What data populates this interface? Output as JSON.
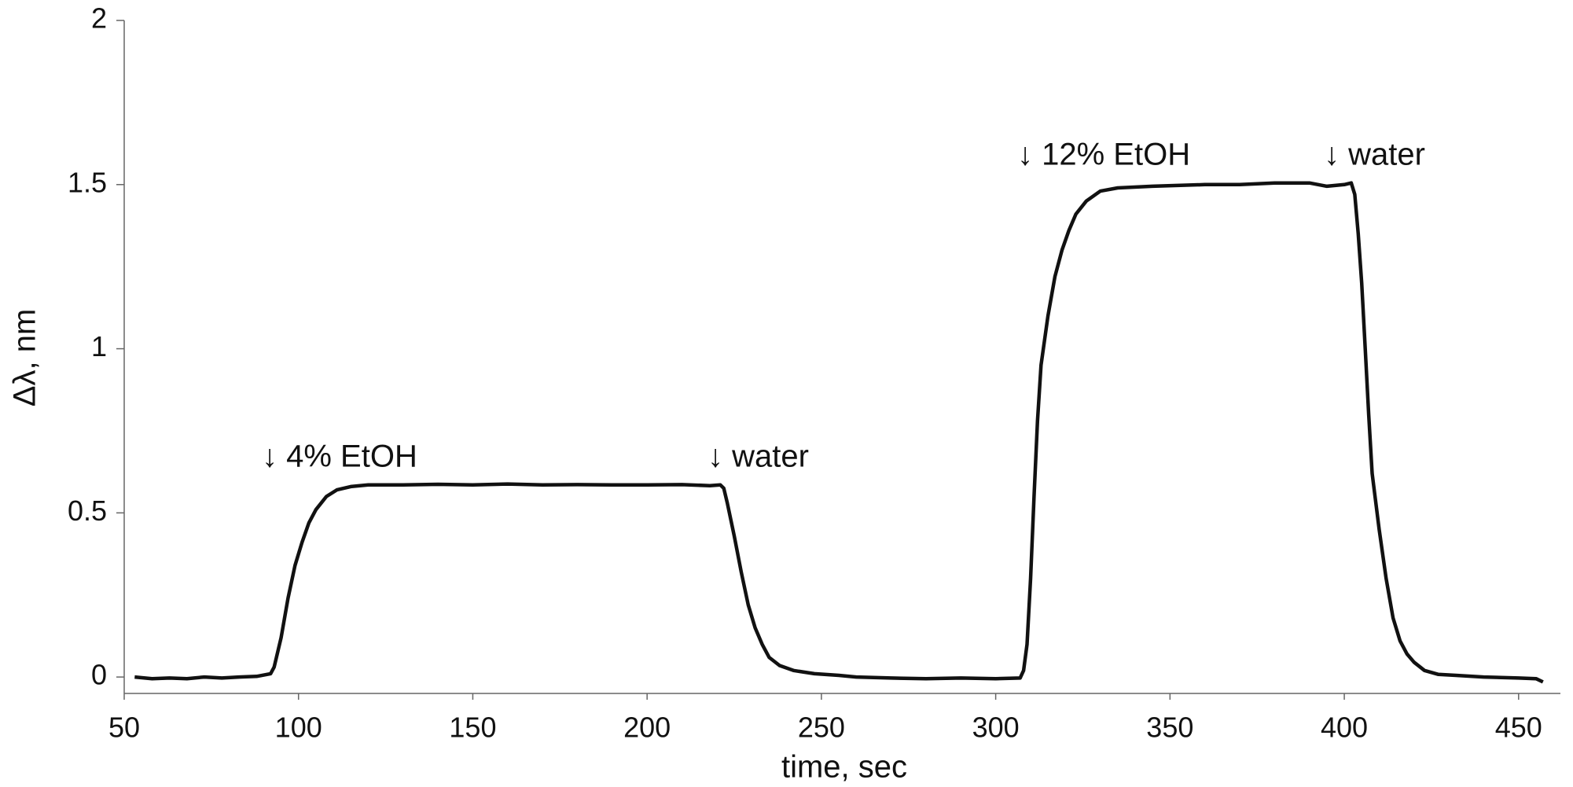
{
  "chart_data": {
    "type": "line",
    "xlabel": "time, sec",
    "ylabel": "Δλ, nm",
    "xlim": [
      50,
      462
    ],
    "ylim": [
      -0.05,
      2
    ],
    "xticks": [
      50,
      100,
      150,
      200,
      250,
      300,
      350,
      400,
      450
    ],
    "yticks": [
      0,
      0.5,
      1,
      1.5,
      2
    ],
    "annotations": [
      "↓ 4% EtOH",
      "↓ water",
      "↓ 12% EtOH",
      "↓ water"
    ],
    "x": [
      53,
      58,
      63,
      68,
      73,
      78,
      83,
      88,
      92,
      93,
      95,
      97,
      99,
      101,
      103,
      105,
      108,
      111,
      115,
      120,
      130,
      140,
      150,
      160,
      170,
      180,
      190,
      200,
      210,
      218,
      221,
      222,
      223,
      225,
      227,
      229,
      231,
      233,
      235,
      238,
      242,
      248,
      255,
      260,
      270,
      280,
      290,
      300,
      307,
      308,
      309,
      310,
      311,
      312,
      313,
      315,
      317,
      319,
      321,
      323,
      326,
      330,
      335,
      345,
      360,
      370,
      380,
      390,
      395,
      400,
      402,
      403,
      404,
      405,
      406,
      407,
      408,
      410,
      412,
      414,
      416,
      418,
      420,
      423,
      427,
      432,
      440,
      450,
      455,
      457
    ],
    "series": [
      {
        "color": "#111111",
        "values": [
          0.0,
          -0.005,
          -0.003,
          -0.005,
          0.0,
          -0.003,
          0.0,
          0.002,
          0.01,
          0.03,
          0.12,
          0.24,
          0.34,
          0.41,
          0.47,
          0.51,
          0.55,
          0.57,
          0.58,
          0.585,
          0.585,
          0.587,
          0.585,
          0.588,
          0.585,
          0.586,
          0.585,
          0.585,
          0.586,
          0.583,
          0.585,
          0.575,
          0.53,
          0.43,
          0.32,
          0.22,
          0.15,
          0.1,
          0.06,
          0.035,
          0.02,
          0.01,
          0.005,
          0.0,
          -0.003,
          -0.005,
          -0.003,
          -0.005,
          -0.003,
          0.02,
          0.1,
          0.3,
          0.55,
          0.78,
          0.95,
          1.1,
          1.22,
          1.3,
          1.36,
          1.41,
          1.45,
          1.48,
          1.49,
          1.495,
          1.5,
          1.5,
          1.505,
          1.505,
          1.495,
          1.5,
          1.505,
          1.47,
          1.35,
          1.2,
          1.0,
          0.8,
          0.62,
          0.45,
          0.3,
          0.18,
          0.11,
          0.07,
          0.045,
          0.02,
          0.008,
          0.005,
          0.0,
          -0.003,
          -0.005,
          -0.015
        ]
      }
    ]
  }
}
